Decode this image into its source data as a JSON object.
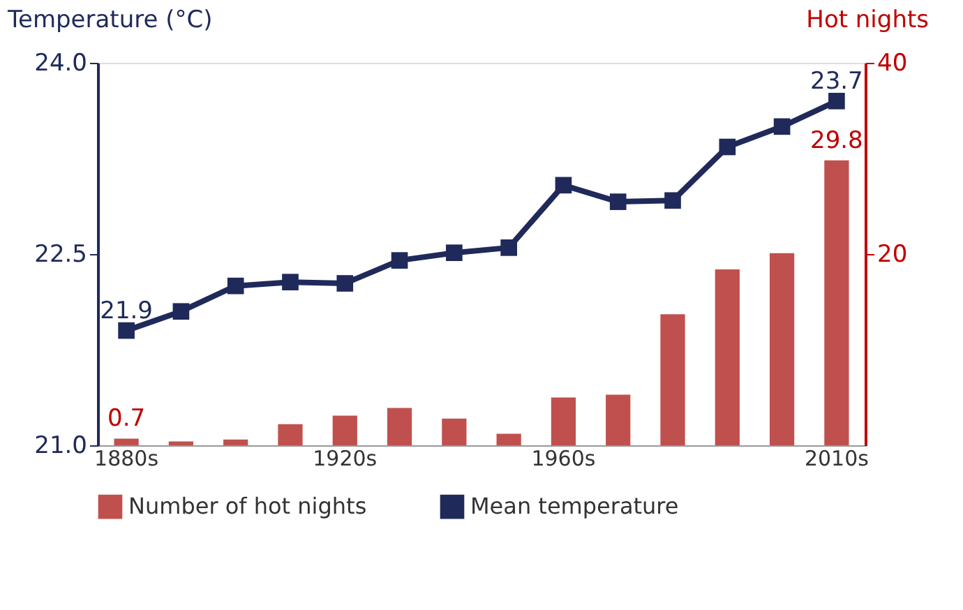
{
  "chart_data": {
    "type": "bar",
    "categories": [
      "1880s",
      null,
      null,
      null,
      "1920s",
      null,
      null,
      null,
      "1960s",
      null,
      null,
      null,
      null,
      "2010s"
    ],
    "ylabel": "Temperature (°C)",
    "y2label": "Hot nights",
    "ylim": [
      21.0,
      24.0
    ],
    "yticks": [
      {
        "value": 21.0,
        "label": "21.0"
      },
      {
        "value": 22.5,
        "label": "22.5"
      },
      {
        "value": 24.0,
        "label": "24.0"
      }
    ],
    "y2lim": [
      0,
      40
    ],
    "y2ticks": [
      20,
      40
    ],
    "grid": false,
    "legend": "bottom",
    "series": [
      {
        "name": "Number of hot nights",
        "axis": "y2",
        "color": "#c0504d",
        "values": [
          0.7,
          0.4,
          0.6,
          2.2,
          3.1,
          3.9,
          2.8,
          1.2,
          5.0,
          5.3,
          13.7,
          18.4,
          20.1,
          29.8
        ],
        "value_labels": [
          "0.7",
          null,
          null,
          null,
          null,
          null,
          null,
          null,
          null,
          null,
          null,
          null,
          null,
          "29.8"
        ]
      },
      {
        "name": "Mean temperature",
        "type": "line",
        "axis": "y",
        "color": "#1f2a5a",
        "marker": "square",
        "line_style": "solid",
        "values": [
          21.9,
          22.05,
          22.25,
          22.28,
          22.27,
          22.45,
          22.51,
          22.55,
          23.04,
          22.91,
          22.92,
          23.34,
          23.5,
          23.7
        ],
        "value_labels": [
          "21.9",
          null,
          null,
          null,
          null,
          null,
          null,
          null,
          null,
          null,
          null,
          null,
          null,
          "23.7"
        ]
      }
    ]
  }
}
